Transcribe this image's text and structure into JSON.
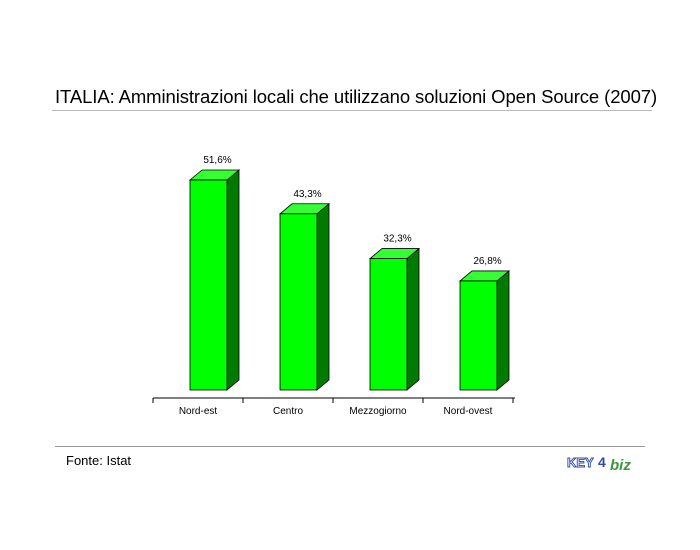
{
  "title": "ITALIA: Amministrazioni locali che utilizzano soluzioni Open Source (2007)",
  "source": "Fonte: Istat",
  "logo": {
    "brand_left": "KEY",
    "brand_mid": "4",
    "brand_right": "biz"
  },
  "colors": {
    "bar_front": "#00ff00",
    "bar_top": "#33ff33",
    "bar_side": "#007a00",
    "logo_blue": "#2d4aa6",
    "logo_green": "#3a9a3a"
  },
  "chart_data": {
    "type": "bar",
    "categories": [
      "Nord-est",
      "Centro",
      "Mezzogiorno",
      "Nord-ovest"
    ],
    "values": [
      51.6,
      43.3,
      32.3,
      26.8
    ],
    "data_labels": [
      "51,6%",
      "43,3%",
      "32,3%",
      "26,8%"
    ],
    "title": "ITALIA: Amministrazioni locali che utilizzano soluzioni Open Source (2007)",
    "xlabel": "",
    "ylabel": "",
    "ylim": [
      0,
      51.6
    ],
    "grid": false,
    "legend": "none",
    "style": "3d-column"
  }
}
